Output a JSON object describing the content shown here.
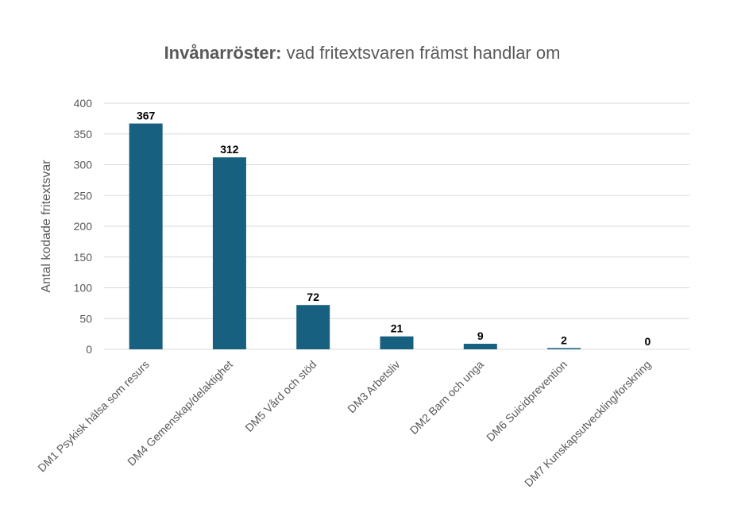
{
  "chart_data": {
    "type": "bar",
    "title_bold": "Invånarröster:",
    "title_rest": " vad fritextsvaren främst handlar om",
    "xlabel": "",
    "ylabel": "Antal kodade fritextsvar",
    "categories": [
      "DM1 Psykisk hälsa som resurs",
      "DM4 Gemenskap/delaktighet",
      "DM5 Vård och stöd",
      "DM3 Arbetsliv",
      "DM2 Barn och unga",
      "DM6 Suicidprevention",
      "DM7 Kunskapsutveckling/forskning"
    ],
    "values": [
      367,
      312,
      72,
      21,
      9,
      2,
      0
    ],
    "data_labels": [
      "367",
      "312",
      "72",
      "21",
      "9",
      "2",
      "0"
    ],
    "ylim": [
      0,
      400
    ],
    "yticks": [
      0,
      50,
      100,
      150,
      200,
      250,
      300,
      350,
      400
    ],
    "ytick_labels": [
      "0",
      "50",
      "100",
      "150",
      "200",
      "250",
      "300",
      "350",
      "400"
    ],
    "grid": true,
    "legend": "none",
    "colors": {
      "bar": "#17607f",
      "grid": "#d9d9d9",
      "axis_text": "#595959",
      "title": "#595959",
      "data_label": "#000000"
    }
  }
}
